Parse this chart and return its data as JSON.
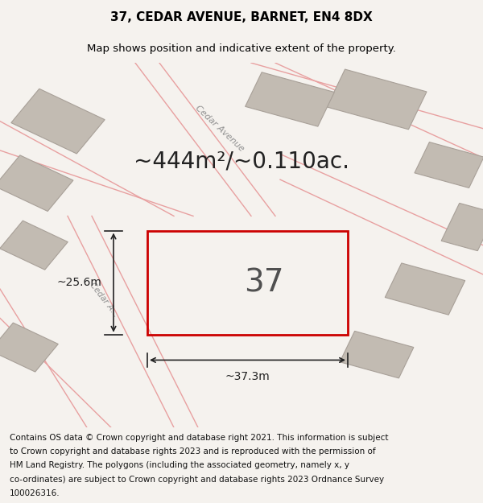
{
  "title": "37, CEDAR AVENUE, BARNET, EN4 8DX",
  "subtitle": "Map shows position and indicative extent of the property.",
  "area_text": "~444m²/~0.110ac.",
  "number_label": "37",
  "dim_width": "~37.3m",
  "dim_height": "~25.6m",
  "street_label_top": "Cedar Avenue",
  "street_label_left": "Cedar A...",
  "footer_lines": [
    "Contains OS data © Crown copyright and database right 2021. This information is subject",
    "to Crown copyright and database rights 2023 and is reproduced with the permission of",
    "HM Land Registry. The polygons (including the associated geometry, namely x, y",
    "co-ordinates) are subject to Crown copyright and database rights 2023 Ordnance Survey",
    "100026316."
  ],
  "bg_color": "#f5f2ee",
  "map_bg": "#d8d3cb",
  "plot_color": "#cc0000",
  "building_color": "#c2bbb2",
  "building_edge": "#a8a098",
  "road_line_color": "#e8a0a0",
  "title_fontsize": 11,
  "subtitle_fontsize": 9.5,
  "area_fontsize": 20,
  "number_fontsize": 28,
  "dim_fontsize": 10,
  "footer_fontsize": 7.5,
  "street_fontsize": 8
}
